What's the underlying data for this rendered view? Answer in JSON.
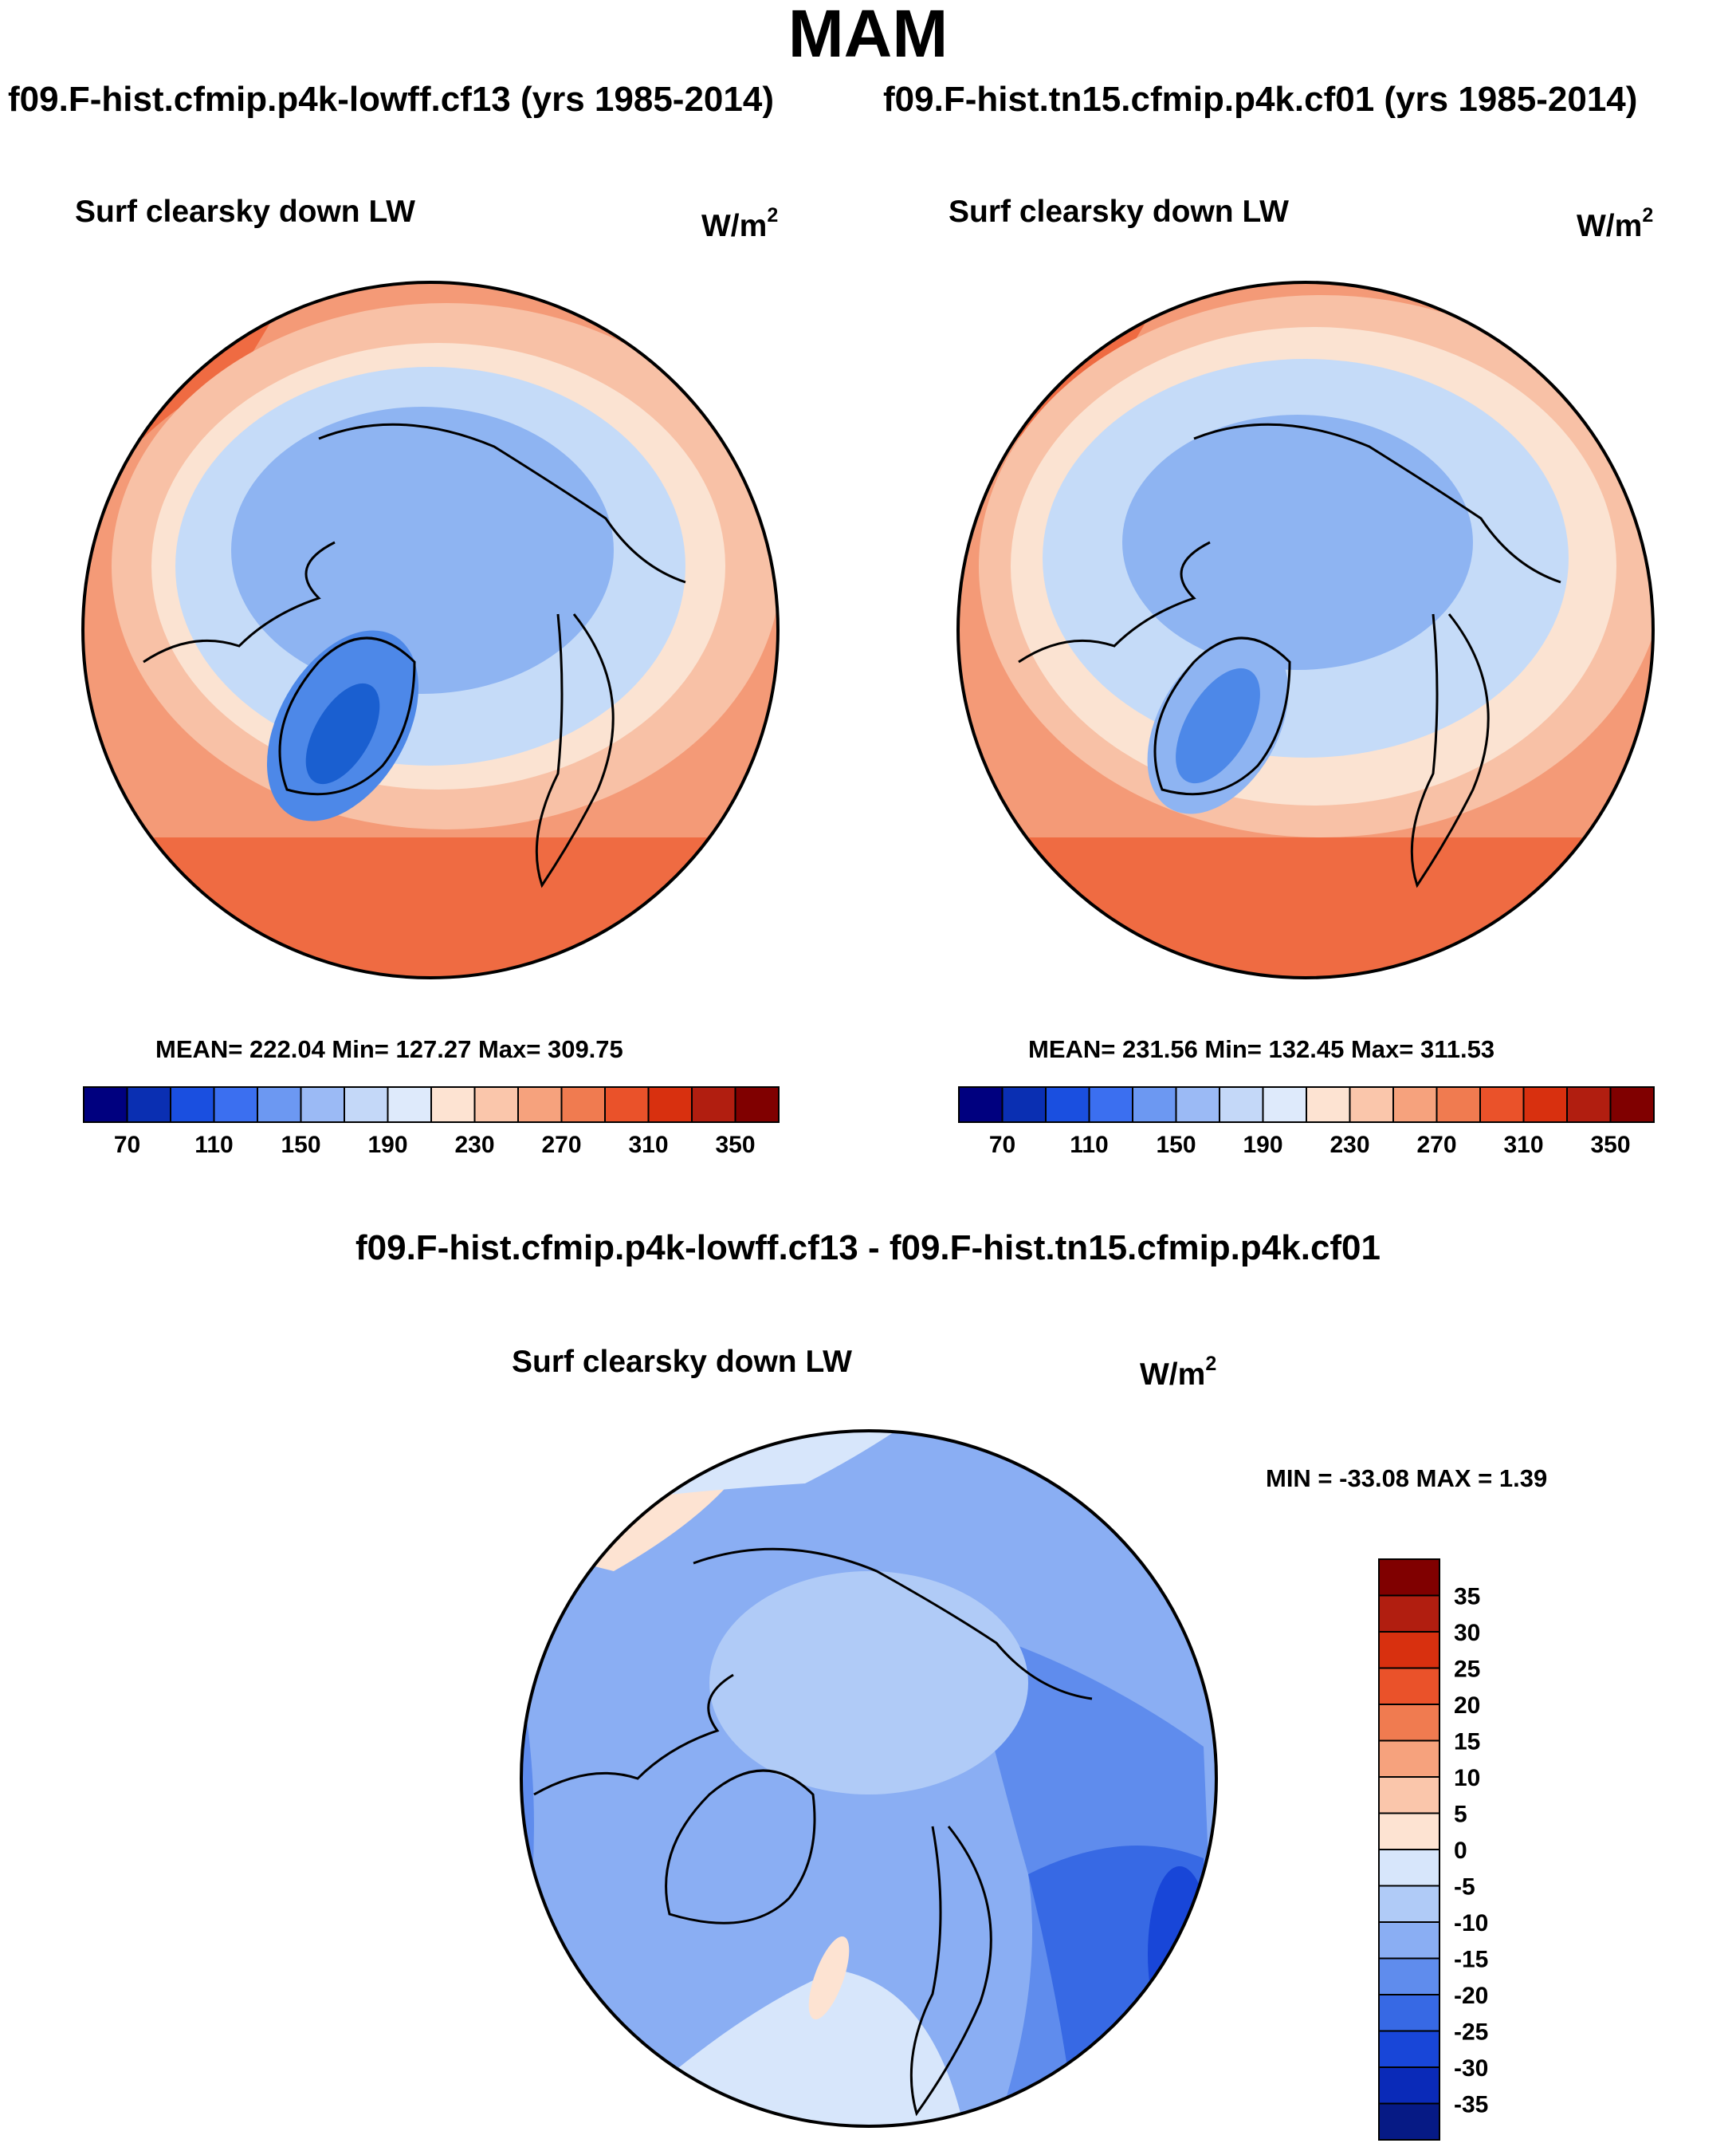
{
  "figure": {
    "title": "MAM",
    "diff_title": "f09.F-hist.cfmip.p4k-lowff.cf13 - f09.F-hist.tn15.cfmip.p4k.cf01"
  },
  "panels": [
    {
      "case": "f09.F-hist.cfmip.p4k-lowff.cf13 (yrs 1985-2014)",
      "variable": "Surf clearsky down LW",
      "units": "W/m",
      "units_sup": "2",
      "stats": "MEAN= 222.04  Min= 127.27  Max= 309.75",
      "palette": [
        "#003f9a",
        "#1a5fd0",
        "#4d88e8",
        "#8eb4f2",
        "#c5dbf8",
        "#fbe3d2",
        "#f8c1a6",
        "#f49a77",
        "#ef6b42",
        "#e84c22"
      ]
    },
    {
      "case": "f09.F-hist.tn15.cfmip.p4k.cf01 (yrs 1985-2014)",
      "variable": "Surf clearsky down LW",
      "units": "W/m",
      "units_sup": "2",
      "stats": "MEAN= 231.56  Min= 132.45  Max= 311.53",
      "palette": [
        "#003f9a",
        "#1a5fd0",
        "#4d88e8",
        "#8eb4f2",
        "#c5dbf8",
        "#fbe3d2",
        "#f8c1a6",
        "#f49a77",
        "#ef6b42",
        "#e84c22"
      ]
    },
    {
      "variable": "Surf clearsky down LW",
      "units": "W/m",
      "units_sup": "2",
      "stats": "MIN = -33.08 MAX =   1.39"
    }
  ],
  "colorbar_abs": {
    "colors": [
      "#00007f",
      "#0a2fb2",
      "#1a4fe0",
      "#3b6ff0",
      "#6c98f2",
      "#9bbaf5",
      "#c4d8f8",
      "#deeafb",
      "#fde3d2",
      "#fac6ab",
      "#f6a27d",
      "#f07b50",
      "#ea522a",
      "#d8300f",
      "#b11e10",
      "#800000"
    ],
    "labels": [
      "70",
      "110",
      "150",
      "190",
      "230",
      "270",
      "310",
      "350"
    ]
  },
  "colorbar_diff": {
    "colors": [
      "#800000",
      "#b11e10",
      "#d8300f",
      "#ea522a",
      "#f07b50",
      "#f6a27d",
      "#fac6ab",
      "#fde3d2",
      "#d7e6fb",
      "#b0cbf7",
      "#8aaef3",
      "#5f8ced",
      "#3769e4",
      "#1846d8",
      "#0a2ab8",
      "#061a85"
    ],
    "labels": [
      "35",
      "30",
      "25",
      "20",
      "15",
      "10",
      "5",
      "0",
      "-5",
      "-10",
      "-15",
      "-20",
      "-25",
      "-30",
      "-35"
    ]
  }
}
